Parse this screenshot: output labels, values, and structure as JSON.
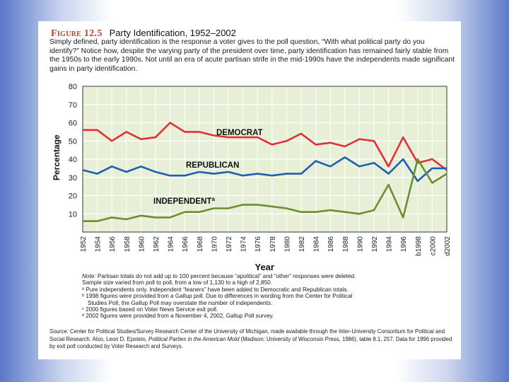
{
  "figure": {
    "label": "Figure 12.5",
    "title": "Party Identification, 1952–2002",
    "caption": "Simply defined, party identification is the response a voter gives to the poll question, “With what political party do you identify?” Notice how, despite the varying party of the president over time, party identification has remained fairly stable from the 1950s to the early 1990s. Not until an era of acute partisan strife in the mid-1990s have the independents made significant gains in party identification."
  },
  "chart_data": {
    "type": "line",
    "ylabel": "Percentage",
    "xlabel": "Year",
    "ylim": [
      0,
      80
    ],
    "yticks": [
      10,
      20,
      30,
      40,
      50,
      60,
      70,
      80
    ],
    "categories": [
      "1952",
      "1954",
      "1956",
      "1958",
      "1960",
      "1962",
      "1964",
      "1966",
      "1968",
      "1970",
      "1972",
      "1974",
      "1976",
      "1978",
      "1980",
      "1982",
      "1984",
      "1986",
      "1988",
      "1990",
      "1992",
      "1994",
      "1996",
      "1998",
      "2000",
      "2002"
    ],
    "category_labels": [
      "1952",
      "1954",
      "1956",
      "1958",
      "1960",
      "1962",
      "1964",
      "1966",
      "1968",
      "1970",
      "1972",
      "1974",
      "1976",
      "1978",
      "1980",
      "1982",
      "1984",
      "1986",
      "1988",
      "1990",
      "1992",
      "1994",
      "1996",
      "b1998",
      "c2000",
      "d2002"
    ],
    "series": [
      {
        "name": "DEMOCRAT",
        "color": "#e03138",
        "values": [
          56,
          56,
          50,
          55,
          51,
          52,
          60,
          55,
          55,
          53,
          52,
          52,
          52,
          48,
          50,
          54,
          48,
          49,
          47,
          51,
          50,
          36,
          52,
          38,
          40,
          34
        ]
      },
      {
        "name": "REPUBLICAN",
        "color": "#1f5fae",
        "values": [
          34,
          32,
          36,
          33,
          36,
          33,
          31,
          31,
          33,
          32,
          33,
          31,
          32,
          31,
          32,
          32,
          39,
          36,
          41,
          36,
          38,
          32,
          40,
          28,
          35,
          35
        ]
      },
      {
        "name": "INDEPENDENT",
        "color": "#6b8f2f",
        "label_suffix": "a",
        "values": [
          6,
          6,
          8,
          7,
          9,
          8,
          8,
          11,
          11,
          13,
          13,
          15,
          15,
          14,
          13,
          11,
          11,
          12,
          11,
          10,
          12,
          26,
          8,
          40,
          27,
          32
        ]
      }
    ]
  },
  "notes": {
    "note_label": "Note:",
    "lines": [
      "Partisan totals do not add up to 100 percent because “apolitical” and “other” responses were deleted.",
      "Sample size varied from poll to poll, from a low of 1,130 to a high of 2,850.",
      "ª Pure independents only. Independent “leaners” have been added to Democratic and Republican totals.",
      "ᵇ 1998 figures were provided from a Gallup poll. Due to differences in wording from the Center for Political",
      "Studies Poll, the Gallup Poll may overstate the number of independents.",
      "ᶜ 2000 figures based on Voter News Service exit poll.",
      "ᵈ 2002 figures were provided from a November 4, 2002, Gallup Poll survey."
    ]
  },
  "source": {
    "label": "Source:",
    "text_a": "Center for Political Studies/Survey Research Center of the University of Michigan, made available through the Inter-University Consortium for Political and Social Research. Also, Leon D. Epstein, ",
    "book": "Political Parties in the American Mold",
    "text_b": " (Madison: University of Wisconsin Press, 1986), table 8.1, 257. Data for 1996 provided by exit poll conducted by Voter Research and Surveys."
  }
}
